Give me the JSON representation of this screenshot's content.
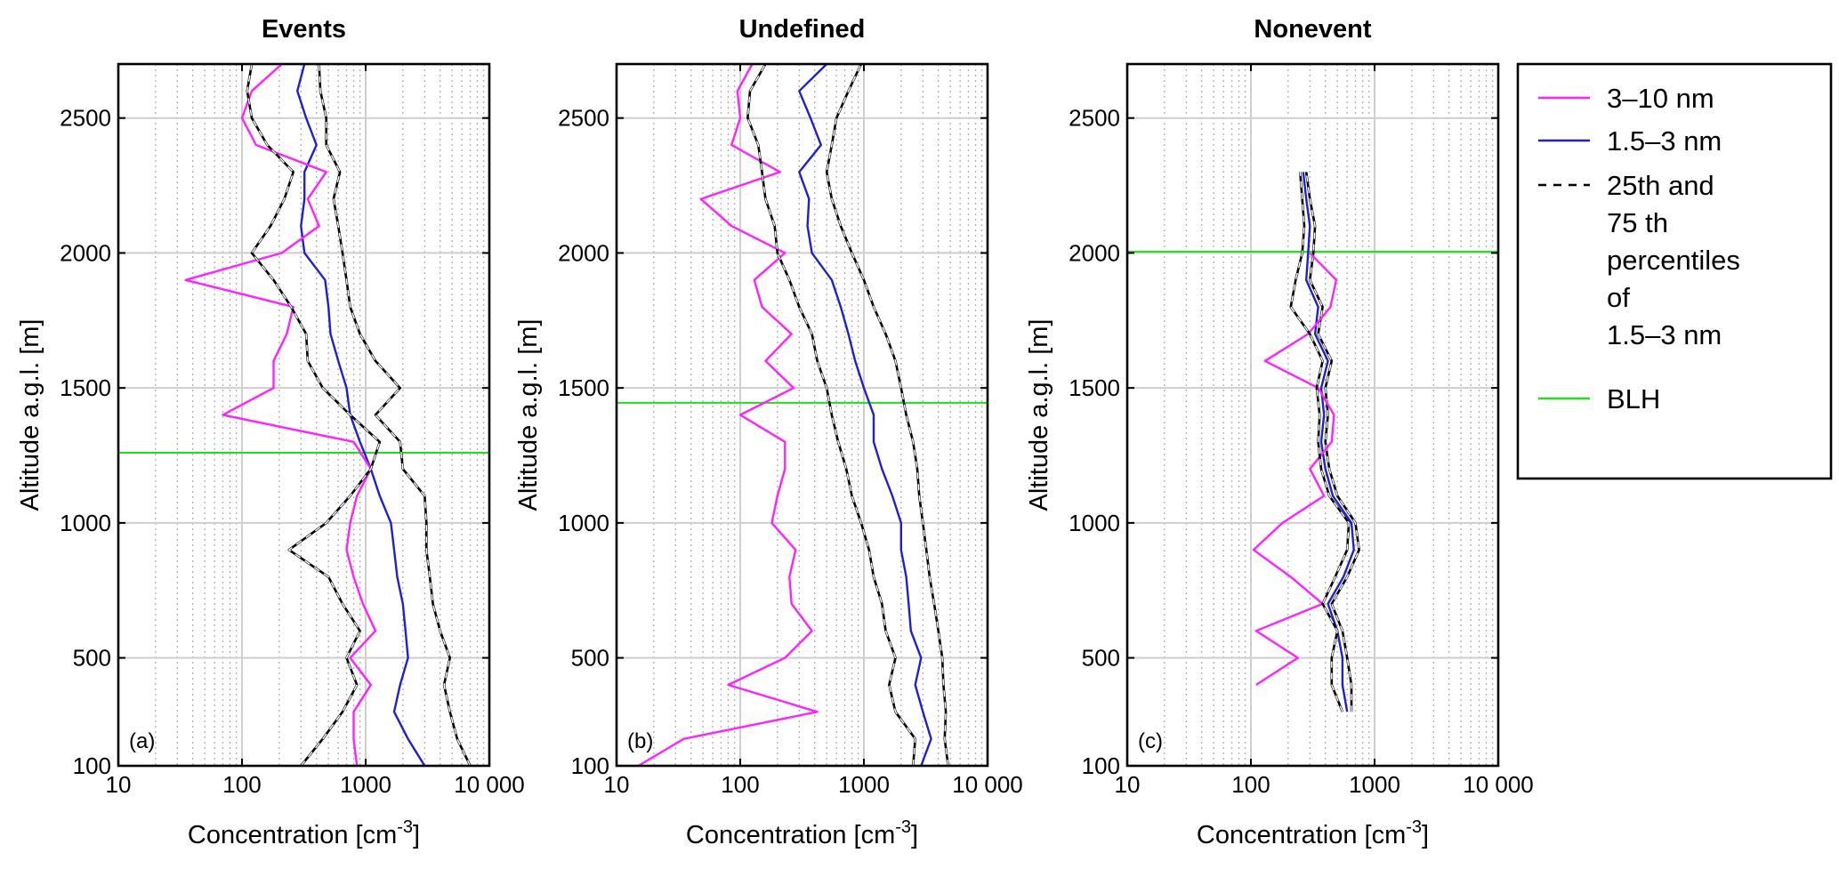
{
  "chart_data": [
    {
      "type": "line",
      "title": "Events",
      "panel_label": "(a)",
      "xlabel": "Concentration [cm",
      "xlabel_sup": "-3",
      "xlabel_end": "]",
      "ylabel": "Altitude a.g.l. [m]",
      "xscale": "log",
      "xlim": [
        10,
        10000
      ],
      "ylim": [
        100,
        2700
      ],
      "xticks": [
        10,
        100,
        1000,
        10000
      ],
      "xtick_labels": [
        "10",
        "100",
        "1000",
        "10 000"
      ],
      "yticks": [
        100,
        500,
        1000,
        1500,
        2000,
        2500
      ],
      "ytick_labels": [
        "100",
        "500",
        "1000",
        "1500",
        "2000",
        "2500"
      ],
      "blh": 1260,
      "series": [
        {
          "key": "p75",
          "y": [
            100,
            200,
            300,
            400,
            500,
            600,
            700,
            800,
            900,
            1000,
            1100,
            1200,
            1300,
            1400,
            1500,
            1600,
            1700,
            1800,
            1900,
            2000,
            2100,
            2200,
            2300,
            2400,
            2500,
            2600,
            2700
          ],
          "x": [
            7000,
            5500,
            4800,
            4300,
            4800,
            4000,
            3500,
            3300,
            3100,
            3100,
            3000,
            2000,
            1900,
            1200,
            1900,
            1200,
            900,
            750,
            700,
            650,
            600,
            550,
            620,
            480,
            480,
            430,
            420
          ]
        },
        {
          "key": "c15",
          "y": [
            100,
            200,
            300,
            400,
            500,
            600,
            700,
            800,
            900,
            1000,
            1100,
            1200,
            1300,
            1400,
            1500,
            1600,
            1700,
            1800,
            1900,
            2000,
            2100,
            2200,
            2300,
            2400,
            2500,
            2600,
            2700
          ],
          "x": [
            3000,
            2200,
            1700,
            1900,
            2200,
            2100,
            2000,
            1800,
            1700,
            1600,
            1300,
            1100,
            900,
            750,
            700,
            600,
            520,
            500,
            470,
            320,
            300,
            320,
            320,
            400,
            330,
            280,
            320
          ]
        },
        {
          "key": "c310",
          "y": [
            100,
            200,
            300,
            400,
            500,
            600,
            700,
            800,
            900,
            1000,
            1100,
            1200,
            1300,
            1400,
            1500,
            1600,
            1700,
            1800,
            1900,
            2000,
            2100,
            2200,
            2300,
            2400,
            2500,
            2600,
            2700
          ],
          "x": [
            850,
            800,
            800,
            1100,
            750,
            1200,
            950,
            800,
            700,
            750,
            850,
            1100,
            800,
            70,
            180,
            180,
            230,
            260,
            35,
            210,
            420,
            340,
            480,
            130,
            100,
            120,
            210
          ]
        },
        {
          "key": "p25",
          "y": [
            100,
            200,
            300,
            400,
            500,
            600,
            700,
            800,
            900,
            1000,
            1100,
            1200,
            1300,
            1400,
            1500,
            1600,
            1700,
            1800,
            1900,
            2000,
            2100,
            2200,
            2300,
            2400,
            2500,
            2600,
            2700
          ],
          "x": [
            300,
            450,
            650,
            850,
            700,
            900,
            650,
            500,
            240,
            480,
            750,
            1100,
            1300,
            750,
            450,
            340,
            330,
            250,
            180,
            120,
            170,
            220,
            260,
            160,
            120,
            110,
            120
          ]
        }
      ]
    },
    {
      "type": "line",
      "title": "Undefined",
      "panel_label": "(b)",
      "xlabel": "Concentration [cm",
      "xlabel_sup": "-3",
      "xlabel_end": "]",
      "ylabel": "Altitude a.g.l. [m]",
      "xscale": "log",
      "xlim": [
        10,
        10000
      ],
      "ylim": [
        100,
        2700
      ],
      "xticks": [
        10,
        100,
        1000,
        10000
      ],
      "xtick_labels": [
        "10",
        "100",
        "1000",
        "10 000"
      ],
      "yticks": [
        100,
        500,
        1000,
        1500,
        2000,
        2500
      ],
      "ytick_labels": [
        "100",
        "500",
        "1000",
        "1500",
        "2000",
        "2500"
      ],
      "blh": 1445,
      "series": [
        {
          "key": "p75",
          "y": [
            100,
            200,
            300,
            400,
            500,
            600,
            700,
            800,
            900,
            1000,
            1100,
            1200,
            1300,
            1400,
            1500,
            1600,
            1700,
            1800,
            1900,
            2000,
            2100,
            2200,
            2300,
            2400,
            2500,
            2600,
            2700
          ],
          "x": [
            4800,
            4500,
            4600,
            4400,
            4300,
            4000,
            3700,
            3400,
            3200,
            3000,
            2800,
            2700,
            2500,
            2200,
            2000,
            1800,
            1500,
            1200,
            1000,
            800,
            650,
            550,
            500,
            550,
            600,
            750,
            950
          ]
        },
        {
          "key": "c15",
          "y": [
            100,
            200,
            300,
            400,
            500,
            600,
            700,
            800,
            900,
            1000,
            1100,
            1200,
            1300,
            1400,
            1500,
            1600,
            1700,
            1800,
            1900,
            2000,
            2100,
            2200,
            2300,
            2400,
            2500,
            2600,
            2700
          ],
          "x": [
            2900,
            3500,
            3000,
            2600,
            2900,
            2400,
            2300,
            2200,
            2000,
            2000,
            1700,
            1400,
            1200,
            1200,
            1000,
            850,
            750,
            650,
            550,
            380,
            350,
            360,
            300,
            450,
            370,
            300,
            500
          ]
        },
        {
          "key": "c310",
          "y": [
            100,
            200,
            300,
            400,
            500,
            600,
            700,
            800,
            900,
            1000,
            1100,
            1200,
            1300,
            1400,
            1500,
            1600,
            1700,
            1800,
            1900,
            2000,
            2100,
            2200,
            2300,
            2400,
            2500,
            2600,
            2700
          ],
          "x": [
            15,
            35,
            420,
            80,
            230,
            380,
            260,
            250,
            280,
            180,
            200,
            230,
            230,
            100,
            270,
            160,
            260,
            150,
            130,
            230,
            85,
            48,
            210,
            85,
            100,
            95,
            125
          ]
        },
        {
          "key": "p25",
          "y": [
            100,
            200,
            300,
            400,
            500,
            600,
            700,
            800,
            900,
            1000,
            1100,
            1200,
            1300,
            1400,
            1500,
            1600,
            1700,
            1800,
            1900,
            2000,
            2100,
            2200,
            2300,
            2400,
            2500,
            2600,
            2700
          ],
          "x": [
            2500,
            2600,
            1800,
            1600,
            1800,
            1500,
            1400,
            1200,
            1100,
            950,
            800,
            720,
            620,
            550,
            500,
            420,
            380,
            300,
            250,
            200,
            190,
            160,
            150,
            140,
            115,
            120,
            160
          ]
        }
      ]
    },
    {
      "type": "line",
      "title": "Nonevent",
      "panel_label": "(c)",
      "xlabel": "Concentration [cm",
      "xlabel_sup": "-3",
      "xlabel_end": "]",
      "ylabel": "Altitude a.g.l. [m]",
      "xscale": "log",
      "xlim": [
        10,
        10000
      ],
      "ylim": [
        100,
        2700
      ],
      "xticks": [
        10,
        100,
        1000,
        10000
      ],
      "xtick_labels": [
        "10",
        "100",
        "1000",
        "10 000"
      ],
      "yticks": [
        100,
        500,
        1000,
        1500,
        2000,
        2500
      ],
      "ytick_labels": [
        "100",
        "500",
        "1000",
        "1500",
        "2000",
        "2500"
      ],
      "blh": 2005,
      "series": [
        {
          "key": "p75",
          "y": [
            300,
            400,
            500,
            600,
            700,
            800,
            900,
            1000,
            1100,
            1200,
            1300,
            1400,
            1500,
            1600,
            1700,
            1800,
            1900,
            2000,
            2100,
            2200,
            2300
          ],
          "x": [
            650,
            650,
            600,
            550,
            450,
            600,
            750,
            700,
            500,
            430,
            400,
            420,
            400,
            450,
            350,
            380,
            300,
            320,
            330,
            300,
            280
          ]
        },
        {
          "key": "c15",
          "y": [
            300,
            400,
            500,
            600,
            700,
            800,
            900,
            1000,
            1100,
            1200,
            1300,
            1400,
            1500,
            1600,
            1700,
            1800,
            1900,
            2000,
            2100,
            2200,
            2300
          ],
          "x": [
            600,
            550,
            550,
            500,
            420,
            560,
            680,
            650,
            460,
            400,
            370,
            390,
            370,
            420,
            330,
            350,
            280,
            290,
            300,
            280,
            265
          ]
        },
        {
          "key": "c310",
          "y": [
            400,
            500,
            600,
            700,
            800,
            900,
            1000,
            1100,
            1200,
            1300,
            1400,
            1500,
            1600,
            1700,
            1800,
            1900,
            2000
          ],
          "x": [
            110,
            240,
            110,
            380,
            210,
            105,
            180,
            390,
            300,
            450,
            470,
            350,
            130,
            290,
            440,
            490,
            300
          ]
        },
        {
          "key": "p25",
          "y": [
            300,
            400,
            500,
            600,
            700,
            800,
            900,
            1000,
            1100,
            1200,
            1300,
            1400,
            1500,
            1600,
            1700,
            1800,
            1900,
            2000,
            2100,
            2200,
            2300
          ],
          "x": [
            550,
            450,
            450,
            500,
            380,
            480,
            600,
            620,
            430,
            370,
            350,
            360,
            340,
            380,
            300,
            210,
            230,
            260,
            270,
            260,
            250
          ]
        }
      ]
    }
  ],
  "legend": {
    "placement": "right",
    "items": [
      {
        "key": "c310",
        "lines": [
          "3–10 nm"
        ]
      },
      {
        "key": "c15",
        "lines": [
          "1.5–3 nm"
        ]
      },
      {
        "key": "p25",
        "lines": [
          "25th and",
          "75 th",
          "percentiles",
          "of",
          "1.5–3 nm"
        ]
      },
      {
        "key": "blh",
        "lines": [
          "BLH"
        ]
      }
    ]
  },
  "colors": {
    "c310": "#ff22ff",
    "c15": "#1f1fd6",
    "pct": "#000000",
    "blh": "#22dd22",
    "grid_major": "#cfcfcf",
    "grid_minor": "#b5b5b5"
  }
}
